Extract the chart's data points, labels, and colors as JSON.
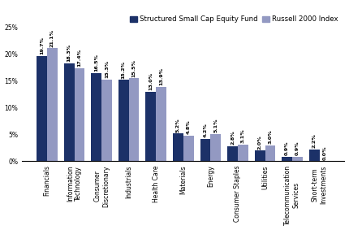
{
  "categories": [
    "Financials",
    "Information\nTechnology",
    "Consumer\nDiscretionary",
    "Industrials",
    "Health Care",
    "Materials",
    "Energy",
    "Consumer Staples",
    "Utilities",
    "Telecommunication\nServices",
    "Short-term\nInvestments"
  ],
  "fund_values": [
    19.7,
    18.3,
    16.5,
    15.2,
    13.0,
    5.2,
    4.2,
    2.8,
    2.0,
    0.9,
    2.2
  ],
  "index_values": [
    21.1,
    17.4,
    15.3,
    15.5,
    13.9,
    4.8,
    5.1,
    3.1,
    3.0,
    0.9,
    0.0
  ],
  "fund_color": "#1c3168",
  "index_color": "#9399c2",
  "fund_label": "Structured Small Cap Equity Fund",
  "index_label": "Russell 2000 Index",
  "ylim": [
    0,
    27
  ],
  "yticks": [
    0,
    5,
    10,
    15,
    20,
    25
  ],
  "ytick_labels": [
    "0%",
    "5%",
    "10%",
    "15%",
    "20%",
    "25%"
  ],
  "bar_width": 0.38,
  "tick_fontsize": 5.5,
  "legend_fontsize": 6.2,
  "value_fontsize": 4.6
}
